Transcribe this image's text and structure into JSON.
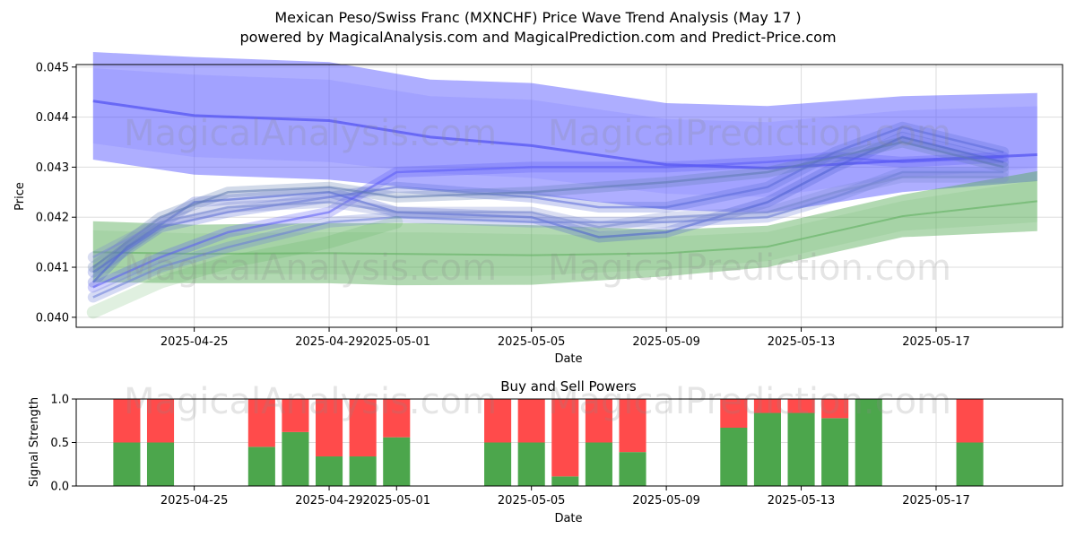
{
  "title_line1": "Mexican Peso/Swiss Franc (MXNCHF) Price Wave Trend Analysis (May 17 )",
  "title_line2": "powered by MagicalAnalysis.com and MagicalPrediction.com and Predict-Price.com",
  "watermarks": [
    "MagicalAnalysis.com",
    "MagicalPrediction.com"
  ],
  "colors": {
    "blue": "#5555ff",
    "green": "#55aa55",
    "buy": "#4ca64c",
    "sell": "#ff4b4b",
    "dark": "#5572aa"
  },
  "chart_data": [
    {
      "type": "area",
      "xlabel": "Date",
      "ylabel": "Price",
      "x_ticks": [
        "2025-04-25",
        "2025-04-29",
        "2025-05-01",
        "2025-05-05",
        "2025-05-09",
        "2025-05-13",
        "2025-05-17"
      ],
      "y_ticks": [
        "0.040",
        "0.041",
        "0.042",
        "0.043",
        "0.044",
        "0.045"
      ],
      "ylim": [
        0.0398,
        0.04505
      ],
      "xlim": [
        "2025-04-21T12:00",
        "2025-05-20T18:00"
      ],
      "grid": true,
      "series": [
        {
          "color": "blue",
          "upper": [
            [
              "2025-04-22",
              0.0453
            ],
            [
              "2025-04-25",
              0.0452
            ],
            [
              "2025-04-29",
              0.0451
            ],
            [
              "2025-05-02",
              0.04475
            ],
            [
              "2025-05-05",
              0.04468
            ],
            [
              "2025-05-09",
              0.04428
            ],
            [
              "2025-05-12",
              0.04422
            ],
            [
              "2025-05-16",
              0.04442
            ],
            [
              "2025-05-20",
              0.04448
            ]
          ],
          "lower": [
            [
              "2025-04-22",
              0.04315
            ],
            [
              "2025-04-25",
              0.04285
            ],
            [
              "2025-04-29",
              0.04275
            ],
            [
              "2025-05-02",
              0.04255
            ],
            [
              "2025-05-05",
              0.04245
            ],
            [
              "2025-05-09",
              0.04215
            ],
            [
              "2025-05-12",
              0.04208
            ],
            [
              "2025-05-16",
              0.0425
            ],
            [
              "2025-05-20",
              0.04272
            ]
          ],
          "center": [
            [
              "2025-04-22",
              0.04432
            ],
            [
              "2025-04-25",
              0.04403
            ],
            [
              "2025-04-29",
              0.04393
            ],
            [
              "2025-05-02",
              0.0436
            ],
            [
              "2025-05-05",
              0.04343
            ],
            [
              "2025-05-09",
              0.04305
            ],
            [
              "2025-05-12",
              0.04298
            ],
            [
              "2025-05-16",
              0.04313
            ],
            [
              "2025-05-20",
              0.04325
            ]
          ]
        },
        {
          "color": "green",
          "upper": [
            [
              "2025-04-22",
              0.04192
            ],
            [
              "2025-04-25",
              0.04185
            ],
            [
              "2025-04-29",
              0.04188
            ],
            [
              "2025-05-02",
              0.04188
            ],
            [
              "2025-05-05",
              0.04184
            ],
            [
              "2025-05-09",
              0.04175
            ],
            [
              "2025-05-12",
              0.04183
            ],
            [
              "2025-05-16",
              0.04245
            ],
            [
              "2025-05-20",
              0.04292
            ]
          ],
          "lower": [
            [
              "2025-04-22",
              0.0407
            ],
            [
              "2025-04-25",
              0.04068
            ],
            [
              "2025-04-29",
              0.04068
            ],
            [
              "2025-05-01",
              0.04064
            ],
            [
              "2025-05-05",
              0.04065
            ],
            [
              "2025-05-09",
              0.04082
            ],
            [
              "2025-05-12",
              0.041
            ],
            [
              "2025-05-16",
              0.0416
            ],
            [
              "2025-05-20",
              0.04172
            ]
          ],
          "center": [
            [
              "2025-04-22",
              0.0413
            ],
            [
              "2025-04-25",
              0.04127
            ],
            [
              "2025-04-29",
              0.04128
            ],
            [
              "2025-05-02",
              0.04126
            ],
            [
              "2025-05-05",
              0.04124
            ],
            [
              "2025-05-09",
              0.04128
            ],
            [
              "2025-05-12",
              0.04141
            ],
            [
              "2025-05-16",
              0.04202
            ],
            [
              "2025-05-20",
              0.04232
            ]
          ]
        }
      ],
      "waves": [
        [
          [
            "2025-04-22",
            0.0407
          ],
          [
            "2025-04-23",
            0.0414
          ],
          [
            "2025-04-25",
            0.0423
          ],
          [
            "2025-04-29",
            0.0425
          ],
          [
            "2025-05-01",
            0.0421
          ],
          [
            "2025-05-05",
            0.042
          ],
          [
            "2025-05-07",
            0.0416
          ],
          [
            "2025-05-09",
            0.0417
          ],
          [
            "2025-05-12",
            0.0423
          ],
          [
            "2025-05-14",
            0.043
          ],
          [
            "2025-05-16",
            0.0436
          ],
          [
            "2025-05-19",
            0.0431
          ]
        ],
        [
          [
            "2025-04-22",
            0.0409
          ],
          [
            "2025-04-24",
            0.0418
          ],
          [
            "2025-04-26",
            0.0421
          ],
          [
            "2025-04-29",
            0.0424
          ],
          [
            "2025-05-01",
            0.0426
          ],
          [
            "2025-05-05",
            0.0424
          ],
          [
            "2025-05-07",
            0.0422
          ],
          [
            "2025-05-09",
            0.0422
          ],
          [
            "2025-05-12",
            0.0426
          ],
          [
            "2025-05-14",
            0.0433
          ],
          [
            "2025-05-16",
            0.0438
          ],
          [
            "2025-05-19",
            0.0433
          ]
        ],
        [
          [
            "2025-04-22",
            0.0406
          ],
          [
            "2025-04-24",
            0.0412
          ],
          [
            "2025-04-26",
            0.0417
          ],
          [
            "2025-04-29",
            0.0421
          ],
          [
            "2025-05-01",
            0.0429
          ],
          [
            "2025-05-05",
            0.043
          ],
          [
            "2025-05-09",
            0.043
          ],
          [
            "2025-05-12",
            0.0431
          ],
          [
            "2025-05-14",
            0.0432
          ],
          [
            "2025-05-16",
            0.0431
          ],
          [
            "2025-05-19",
            0.0432
          ]
        ],
        [
          [
            "2025-04-22",
            0.041
          ],
          [
            "2025-04-24",
            0.042
          ],
          [
            "2025-04-26",
            0.0425
          ],
          [
            "2025-04-29",
            0.0426
          ],
          [
            "2025-05-01",
            0.0424
          ],
          [
            "2025-05-05",
            0.0425
          ],
          [
            "2025-05-09",
            0.0427
          ],
          [
            "2025-05-12",
            0.0429
          ],
          [
            "2025-05-14",
            0.0432
          ],
          [
            "2025-05-16",
            0.0435
          ],
          [
            "2025-05-19",
            0.043
          ]
        ],
        [
          [
            "2025-04-22",
            0.0404
          ],
          [
            "2025-04-24",
            0.041
          ],
          [
            "2025-04-26",
            0.0414
          ],
          [
            "2025-04-29",
            0.0419
          ],
          [
            "2025-05-01",
            0.042
          ],
          [
            "2025-05-05",
            0.0419
          ],
          [
            "2025-05-09",
            0.0419
          ],
          [
            "2025-05-12",
            0.042
          ],
          [
            "2025-05-14",
            0.0424
          ],
          [
            "2025-05-16",
            0.0429
          ],
          [
            "2025-05-19",
            0.0429
          ]
        ],
        [
          [
            "2025-04-22",
            0.0412
          ],
          [
            "2025-04-24",
            0.0419
          ],
          [
            "2025-04-26",
            0.0422
          ],
          [
            "2025-04-29",
            0.0423
          ],
          [
            "2025-05-01",
            0.0421
          ],
          [
            "2025-05-05",
            0.0421
          ],
          [
            "2025-05-07",
            0.0418
          ],
          [
            "2025-05-09",
            0.042
          ],
          [
            "2025-05-12",
            0.0421
          ],
          [
            "2025-05-14",
            0.0425
          ],
          [
            "2025-05-16",
            0.0428
          ],
          [
            "2025-05-19",
            0.0428
          ]
        ]
      ]
    },
    {
      "type": "bar",
      "title": "Buy and Sell Powers",
      "xlabel": "Date",
      "ylabel": "Signal Strength",
      "y_ticks": [
        "0.0",
        "0.5",
        "1.0"
      ],
      "ylim": [
        0,
        1
      ],
      "x_ticks": [
        "2025-04-25",
        "2025-04-29",
        "2025-05-01",
        "2025-05-05",
        "2025-05-09",
        "2025-05-13",
        "2025-05-17"
      ],
      "xlim": [
        "2025-04-21T12:00",
        "2025-05-20T18:00"
      ],
      "categories": [
        "2025-04-23",
        "2025-04-24",
        "2025-04-27",
        "2025-04-28",
        "2025-04-29",
        "2025-04-30",
        "2025-05-01",
        "2025-05-04",
        "2025-05-05",
        "2025-05-06",
        "2025-05-07",
        "2025-05-08",
        "2025-05-11",
        "2025-05-12",
        "2025-05-13",
        "2025-05-14",
        "2025-05-15",
        "2025-05-18"
      ],
      "series": [
        {
          "values": [
            0.5,
            0.5,
            0.45,
            0.62,
            0.34,
            0.34,
            0.56,
            0.5,
            0.5,
            0.11,
            0.5,
            0.39,
            0.67,
            0.84,
            0.84,
            0.78,
            1.0,
            0.5
          ]
        },
        {
          "values": [
            0.5,
            0.5,
            0.55,
            0.38,
            0.66,
            0.66,
            0.44,
            0.5,
            0.5,
            0.89,
            0.5,
            0.61,
            0.33,
            0.16,
            0.16,
            0.22,
            0.0,
            0.5
          ]
        }
      ]
    }
  ]
}
